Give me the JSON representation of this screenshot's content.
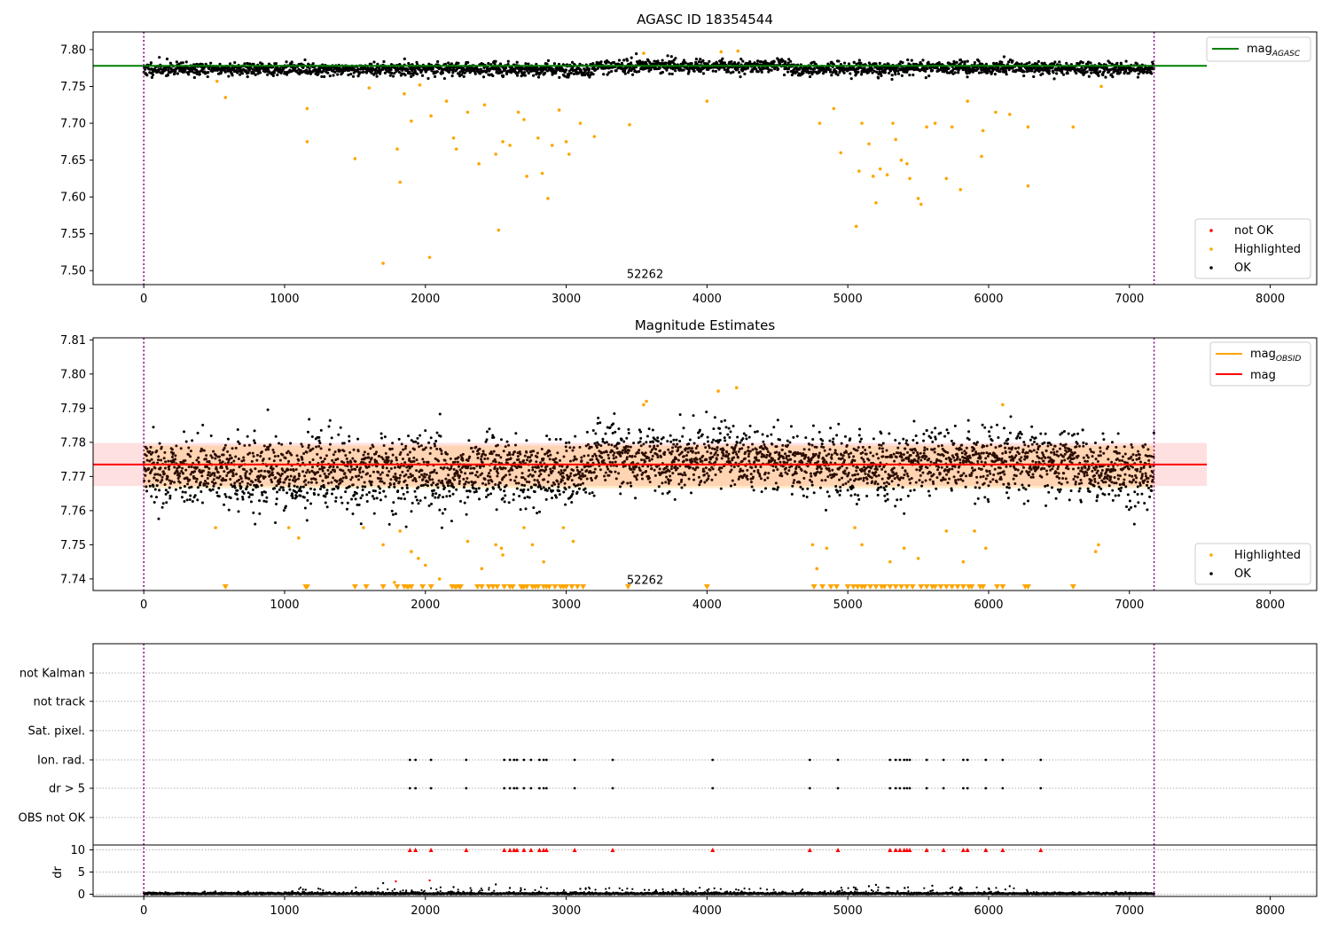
{
  "chart_data": [
    {
      "type": "scatter",
      "title": "AGASC ID 18354544",
      "xlim": [
        -360,
        8330
      ],
      "ylim": [
        7.481,
        7.824
      ],
      "xticks": [
        0,
        1000,
        2000,
        3000,
        4000,
        5000,
        6000,
        7000,
        8000
      ],
      "yticks": [
        7.5,
        7.55,
        7.6,
        7.65,
        7.7,
        7.75,
        7.8
      ],
      "ytick_labels": [
        "7.50",
        "7.55",
        "7.60",
        "7.65",
        "7.70",
        "7.75",
        "7.80"
      ],
      "vlines": [
        0,
        7175
      ],
      "obsid_label": {
        "text": "52262",
        "x": 3430,
        "y": 7.49
      },
      "mag_agasc": 7.778,
      "mag_agasc_extent": [
        -360,
        7550
      ],
      "band": {
        "center": 7.773,
        "width_main": 0.0035,
        "width_alt": 0.007,
        "seeds": {
          "main": 11,
          "alt": 12
        }
      },
      "highlighted": [
        [
          520,
          7.757
        ],
        [
          580,
          7.735
        ],
        [
          1160,
          7.72
        ],
        [
          1160,
          7.675
        ],
        [
          1500,
          7.652
        ],
        [
          1600,
          7.748
        ],
        [
          1700,
          7.51
        ],
        [
          1800,
          7.665
        ],
        [
          1820,
          7.62
        ],
        [
          1850,
          7.74
        ],
        [
          1900,
          7.703
        ],
        [
          1960,
          7.752
        ],
        [
          2030,
          7.518
        ],
        [
          2040,
          7.71
        ],
        [
          2150,
          7.73
        ],
        [
          2200,
          7.68
        ],
        [
          2220,
          7.665
        ],
        [
          2300,
          7.715
        ],
        [
          2380,
          7.645
        ],
        [
          2420,
          7.725
        ],
        [
          2500,
          7.658
        ],
        [
          2520,
          7.555
        ],
        [
          2550,
          7.675
        ],
        [
          2600,
          7.67
        ],
        [
          2660,
          7.715
        ],
        [
          2700,
          7.705
        ],
        [
          2720,
          7.628
        ],
        [
          2800,
          7.68
        ],
        [
          2830,
          7.632
        ],
        [
          2870,
          7.598
        ],
        [
          2900,
          7.67
        ],
        [
          2950,
          7.718
        ],
        [
          3000,
          7.675
        ],
        [
          3020,
          7.658
        ],
        [
          3100,
          7.7
        ],
        [
          3200,
          7.682
        ],
        [
          3450,
          7.698
        ],
        [
          3550,
          7.795
        ],
        [
          4000,
          7.73
        ],
        [
          4100,
          7.797
        ],
        [
          4220,
          7.798
        ],
        [
          4800,
          7.7
        ],
        [
          4900,
          7.72
        ],
        [
          4950,
          7.66
        ],
        [
          5060,
          7.56
        ],
        [
          5080,
          7.635
        ],
        [
          5100,
          7.7
        ],
        [
          5150,
          7.672
        ],
        [
          5180,
          7.628
        ],
        [
          5200,
          7.592
        ],
        [
          5230,
          7.638
        ],
        [
          5280,
          7.63
        ],
        [
          5320,
          7.7
        ],
        [
          5340,
          7.678
        ],
        [
          5380,
          7.65
        ],
        [
          5420,
          7.645
        ],
        [
          5440,
          7.625
        ],
        [
          5500,
          7.598
        ],
        [
          5520,
          7.59
        ],
        [
          5560,
          7.695
        ],
        [
          5620,
          7.7
        ],
        [
          5700,
          7.625
        ],
        [
          5740,
          7.695
        ],
        [
          5800,
          7.61
        ],
        [
          5850,
          7.73
        ],
        [
          5950,
          7.655
        ],
        [
          5960,
          7.69
        ],
        [
          6050,
          7.715
        ],
        [
          6150,
          7.712
        ],
        [
          6280,
          7.615
        ],
        [
          6280,
          7.695
        ],
        [
          6600,
          7.695
        ],
        [
          6800,
          7.75
        ]
      ],
      "not_ok": [],
      "legend": [
        "not OK",
        "Highlighted",
        "OK"
      ],
      "top_legend": "mag",
      "top_legend_sub": "AGASC"
    },
    {
      "type": "scatter",
      "title": "Magnitude Estimates",
      "xlim": [
        -360,
        8330
      ],
      "ylim": [
        7.7366,
        7.8106
      ],
      "xticks": [
        0,
        1000,
        2000,
        3000,
        4000,
        5000,
        6000,
        7000,
        8000
      ],
      "yticks": [
        7.74,
        7.75,
        7.76,
        7.77,
        7.78,
        7.79,
        7.8,
        7.81
      ],
      "ytick_labels": [
        "7.74",
        "7.75",
        "7.76",
        "7.77",
        "7.78",
        "7.79",
        "7.80",
        "7.81"
      ],
      "vlines": [
        0,
        7175
      ],
      "obsid_label": {
        "text": "52262",
        "x": 3430,
        "y": 7.7385
      },
      "mag_obsid": 7.7735,
      "mag_line": 7.7735,
      "mag_line_extent": [
        -360,
        7550
      ],
      "band_red": [
        7.7672,
        7.7798
      ],
      "band_orange": [
        7.7665,
        7.779
      ],
      "band_extent": [
        -360,
        7550
      ],
      "highlighted_mid": [
        [
          510,
          7.755
        ],
        [
          1030,
          7.755
        ],
        [
          1100,
          7.752
        ],
        [
          1560,
          7.755
        ],
        [
          1700,
          7.75
        ],
        [
          1780,
          7.739
        ],
        [
          1820,
          7.754
        ],
        [
          1900,
          7.748
        ],
        [
          1950,
          7.746
        ],
        [
          2000,
          7.744
        ],
        [
          2100,
          7.74
        ],
        [
          2200,
          7.738
        ],
        [
          2300,
          7.751
        ],
        [
          2400,
          7.743
        ],
        [
          2500,
          7.75
        ],
        [
          2540,
          7.749
        ],
        [
          2550,
          7.747
        ],
        [
          2700,
          7.755
        ],
        [
          2760,
          7.75
        ],
        [
          2840,
          7.745
        ],
        [
          2980,
          7.755
        ],
        [
          3050,
          7.751
        ],
        [
          3550,
          7.791
        ],
        [
          3570,
          7.792
        ],
        [
          4080,
          7.795
        ],
        [
          4210,
          7.796
        ],
        [
          4750,
          7.75
        ],
        [
          4850,
          7.749
        ],
        [
          4780,
          7.743
        ],
        [
          5050,
          7.755
        ],
        [
          5100,
          7.75
        ],
        [
          5300,
          7.745
        ],
        [
          5400,
          7.749
        ],
        [
          5500,
          7.746
        ],
        [
          5700,
          7.754
        ],
        [
          5820,
          7.745
        ],
        [
          5900,
          7.754
        ],
        [
          5980,
          7.749
        ],
        [
          6100,
          7.791
        ],
        [
          6780,
          7.75
        ],
        [
          6760,
          7.748
        ]
      ],
      "highlighted_floor": [
        580,
        1150,
        1160,
        1500,
        1580,
        1700,
        1800,
        1850,
        1870,
        1880,
        1900,
        1980,
        2040,
        2190,
        2210,
        2220,
        2240,
        2250,
        2370,
        2400,
        2450,
        2480,
        2510,
        2560,
        2600,
        2620,
        2680,
        2690,
        2700,
        2720,
        2760,
        2780,
        2800,
        2840,
        2860,
        2880,
        2920,
        2960,
        2980,
        3000,
        3040,
        3080,
        3120,
        3440,
        4000,
        4760,
        4820,
        4880,
        4920,
        5000,
        5040,
        5070,
        5100,
        5120,
        5160,
        5200,
        5240,
        5260,
        5300,
        5340,
        5380,
        5420,
        5460,
        5520,
        5560,
        5600,
        5620,
        5660,
        5700,
        5740,
        5780,
        5820,
        5860,
        5880,
        5940,
        5960,
        6060,
        6100,
        6260,
        6280,
        6600
      ],
      "legend": [
        "Highlighted",
        "OK"
      ],
      "top_legend": [
        "mag",
        "mag"
      ],
      "top_legend_sub": "OBSID"
    },
    {
      "type": "scatter",
      "xlim": [
        -360,
        8330
      ],
      "xticks": [
        0,
        1000,
        2000,
        3000,
        4000,
        5000,
        6000,
        7000,
        8000
      ],
      "vlines": [
        0,
        7175
      ],
      "flag_rows": [
        "not Kalman",
        "not track",
        "Sat. pixel.",
        "Ion. rad.",
        "dr > 5",
        "OBS not OK"
      ],
      "flag_events": [
        1890,
        1930,
        2040,
        2290,
        2560,
        2600,
        2630,
        2650,
        2700,
        2750,
        2810,
        2840,
        2860,
        3060,
        3330,
        4040,
        4730,
        4930,
        5300,
        5340,
        5370,
        5400,
        5420,
        5440,
        5560,
        5680,
        5820,
        5850,
        5980,
        6100,
        6370
      ],
      "dr_ylim": [
        -0.5,
        10.3
      ],
      "dr_yticks": [
        0,
        5,
        10
      ],
      "dr_ylabel": "dr",
      "dr_spikes": [
        [
          1700,
          2.5
        ],
        [
          1790,
          2.9
        ],
        [
          2030,
          3.1
        ],
        [
          2200,
          1.6
        ],
        [
          2500,
          2.2
        ],
        [
          2600,
          1.4
        ],
        [
          3100,
          1.2
        ],
        [
          5150,
          1.8
        ],
        [
          5200,
          2.1
        ],
        [
          5600,
          1.9
        ],
        [
          5800,
          1.5
        ],
        [
          6150,
          1.8
        ],
        [
          6000,
          1.3
        ]
      ]
    }
  ]
}
